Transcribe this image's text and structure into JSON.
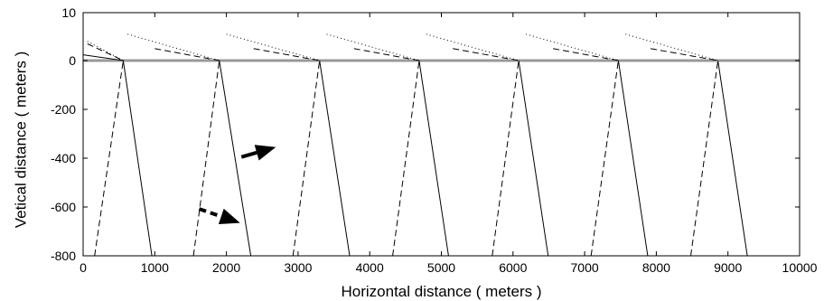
{
  "chart_data": {
    "type": "line",
    "title": "",
    "xlabel": "Horizontal distance ( meters )",
    "ylabel": "Vetical distance ( meters )",
    "xlim": [
      0,
      10000
    ],
    "ylim": [
      -800,
      10
    ],
    "xticks": [
      0,
      1000,
      2000,
      3000,
      4000,
      5000,
      6000,
      7000,
      8000,
      9000,
      10000
    ],
    "yticks": [
      10,
      0,
      -200,
      -400,
      -600,
      -800
    ],
    "grid": false,
    "legend": "none",
    "colors": {
      "line": "#000000",
      "surface": "#999999"
    },
    "surface_line": {
      "x": [
        0,
        10000
      ],
      "y": [
        0,
        0
      ]
    },
    "solid_segments": [
      {
        "x": [
          0,
          560,
          960
        ],
        "y": [
          1.2,
          0,
          -800
        ]
      },
      {
        "x": [
          1900,
          2340
        ],
        "y": [
          0,
          -800
        ]
      },
      {
        "x": [
          3300,
          3720
        ],
        "y": [
          0,
          -800
        ]
      },
      {
        "x": [
          4690,
          5100
        ],
        "y": [
          0,
          -800
        ]
      },
      {
        "x": [
          6080,
          6490
        ],
        "y": [
          0,
          -800
        ]
      },
      {
        "x": [
          7470,
          7880
        ],
        "y": [
          0,
          -800
        ]
      },
      {
        "x": [
          8860,
          9270
        ],
        "y": [
          0,
          -800
        ]
      }
    ],
    "dashed_segments": [
      {
        "x": [
          160,
          560
        ],
        "y": [
          -800,
          0
        ]
      },
      {
        "x": [
          1540,
          1900
        ],
        "y": [
          -800,
          0
        ]
      },
      {
        "x": [
          2930,
          3300
        ],
        "y": [
          -800,
          0
        ]
      },
      {
        "x": [
          4320,
          4690
        ],
        "y": [
          -800,
          0
        ]
      },
      {
        "x": [
          5710,
          6080
        ],
        "y": [
          -800,
          0
        ]
      },
      {
        "x": [
          7090,
          7470
        ],
        "y": [
          -800,
          0
        ]
      },
      {
        "x": [
          8480,
          8860
        ],
        "y": [
          -800,
          0
        ]
      },
      {
        "x": [
          60,
          560
        ],
        "y": [
          3.5,
          0
        ]
      },
      {
        "x": [
          1000,
          1900
        ],
        "y": [
          2.5,
          0
        ]
      },
      {
        "x": [
          2380,
          3300
        ],
        "y": [
          2.5,
          0
        ]
      },
      {
        "x": [
          3780,
          4690
        ],
        "y": [
          2.5,
          0
        ]
      },
      {
        "x": [
          5160,
          6080
        ],
        "y": [
          2.5,
          0
        ]
      },
      {
        "x": [
          6560,
          7470
        ],
        "y": [
          2.5,
          0
        ]
      },
      {
        "x": [
          7920,
          8860
        ],
        "y": [
          2.5,
          0
        ]
      }
    ],
    "dotted_segments": [
      {
        "x": [
          60,
          560
        ],
        "y": [
          4.0,
          0
        ]
      },
      {
        "x": [
          620,
          1900
        ],
        "y": [
          5.5,
          0
        ]
      },
      {
        "x": [
          2000,
          3300
        ],
        "y": [
          5.5,
          0
        ]
      },
      {
        "x": [
          3400,
          4690
        ],
        "y": [
          5.5,
          0
        ]
      },
      {
        "x": [
          4790,
          6080
        ],
        "y": [
          5.5,
          0
        ]
      },
      {
        "x": [
          6180,
          7470
        ],
        "y": [
          5.5,
          0
        ]
      },
      {
        "x": [
          7570,
          8860
        ],
        "y": [
          5.5,
          0
        ]
      }
    ],
    "arrows": [
      {
        "style": "solid",
        "x": [
          2210,
          2690
        ],
        "y": [
          -395,
          -355
        ]
      },
      {
        "style": "dashed",
        "x": [
          1620,
          2190
        ],
        "y": [
          -608,
          -665
        ]
      }
    ]
  }
}
